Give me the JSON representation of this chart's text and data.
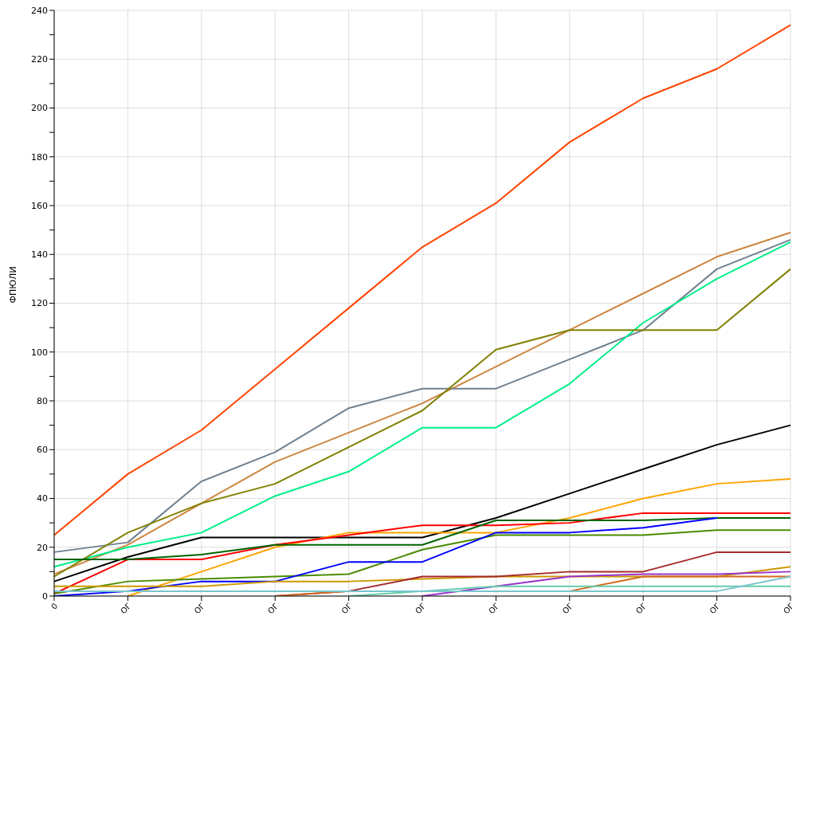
{
  "chart_data": {
    "type": "line",
    "ylabel": "ФПЮЛИ",
    "categories": [
      "0",
      "ОГ",
      "ОГ",
      "ОГ",
      "ОГ",
      "ОГ",
      "ОГ",
      "ОГ",
      "ОГ",
      "ОГ",
      "ОГ"
    ],
    "ylim": [
      0,
      240
    ],
    "yticks": [
      0,
      {
        "value": 10,
        "label": null
      },
      20,
      {
        "value": 30,
        "label": null
      },
      40,
      {
        "value": 50,
        "label": null
      },
      60,
      {
        "value": 70,
        "label": null
      },
      80,
      {
        "value": 90,
        "label": null
      },
      100,
      {
        "value": 110,
        "label": null
      },
      120,
      {
        "value": 130,
        "label": null
      },
      140,
      {
        "value": 150,
        "label": null
      },
      160,
      {
        "value": 170,
        "label": null
      },
      180,
      {
        "value": 190,
        "label": null
      },
      200,
      {
        "value": 210,
        "label": null
      },
      220,
      {
        "value": 230,
        "label": null
      },
      240
    ],
    "grid": true,
    "legend": false,
    "marker": "none",
    "line_style": "solid",
    "series": [
      {
        "color": "#ff4500",
        "values": [
          25,
          50,
          68,
          93,
          118,
          143,
          161,
          186,
          204,
          216,
          234
        ]
      },
      {
        "color": "#cd853f",
        "values": [
          9,
          21,
          38,
          55,
          67,
          79,
          94,
          109,
          124,
          139,
          149
        ]
      },
      {
        "color": "#708090",
        "values": [
          18,
          22,
          47,
          59,
          77,
          85,
          85,
          97,
          109,
          134,
          146
        ]
      },
      {
        "color": "#00ee88",
        "values": [
          12,
          20,
          26,
          41,
          51,
          69,
          69,
          87,
          112,
          130,
          145
        ]
      },
      {
        "color": "#808000",
        "values": [
          8,
          26,
          38,
          46,
          61,
          76,
          101,
          109,
          109,
          109,
          134
        ]
      },
      {
        "color": "#000000",
        "values": [
          6,
          16,
          24,
          24,
          24,
          24,
          32,
          42,
          52,
          62,
          70
        ]
      },
      {
        "color": "#ffa500",
        "values": [
          null,
          0,
          10,
          20,
          26,
          26,
          26,
          32,
          40,
          46,
          48
        ]
      },
      {
        "color": "#ff0000",
        "values": [
          1,
          15,
          15,
          21,
          25,
          29,
          29,
          30,
          34,
          34,
          34
        ]
      },
      {
        "color": "#006400",
        "values": [
          15,
          15,
          17,
          21,
          21,
          21,
          31,
          31,
          31,
          32,
          32
        ]
      },
      {
        "color": "#4a8c00",
        "values": [
          1,
          6,
          7,
          8,
          9,
          19,
          25,
          25,
          25,
          27,
          27
        ]
      },
      {
        "color": "#0000ff",
        "values": [
          0,
          2,
          6,
          6,
          14,
          14,
          26,
          26,
          28,
          32,
          null
        ]
      },
      {
        "color": "#cc9900",
        "values": [
          4,
          4,
          4,
          6,
          6,
          7,
          8,
          8,
          8,
          8,
          12
        ]
      },
      {
        "color": "#a52a2a",
        "values": [
          null,
          null,
          null,
          0,
          2,
          8,
          8,
          10,
          10,
          18,
          18
        ]
      },
      {
        "color": "#d2691e",
        "values": [
          null,
          null,
          null,
          0,
          2,
          2,
          2,
          2,
          8,
          8,
          8
        ]
      },
      {
        "color": "#9932cc",
        "values": [
          null,
          null,
          null,
          null,
          null,
          0,
          4,
          8,
          9,
          9,
          10
        ]
      },
      {
        "color": "#66cdaa",
        "values": [
          null,
          null,
          null,
          null,
          0,
          2,
          4,
          4,
          4,
          4,
          4
        ]
      },
      {
        "color": "#7ac5cd",
        "values": [
          2,
          2,
          2,
          2,
          2,
          2,
          2,
          2,
          2,
          2,
          8
        ]
      }
    ]
  }
}
